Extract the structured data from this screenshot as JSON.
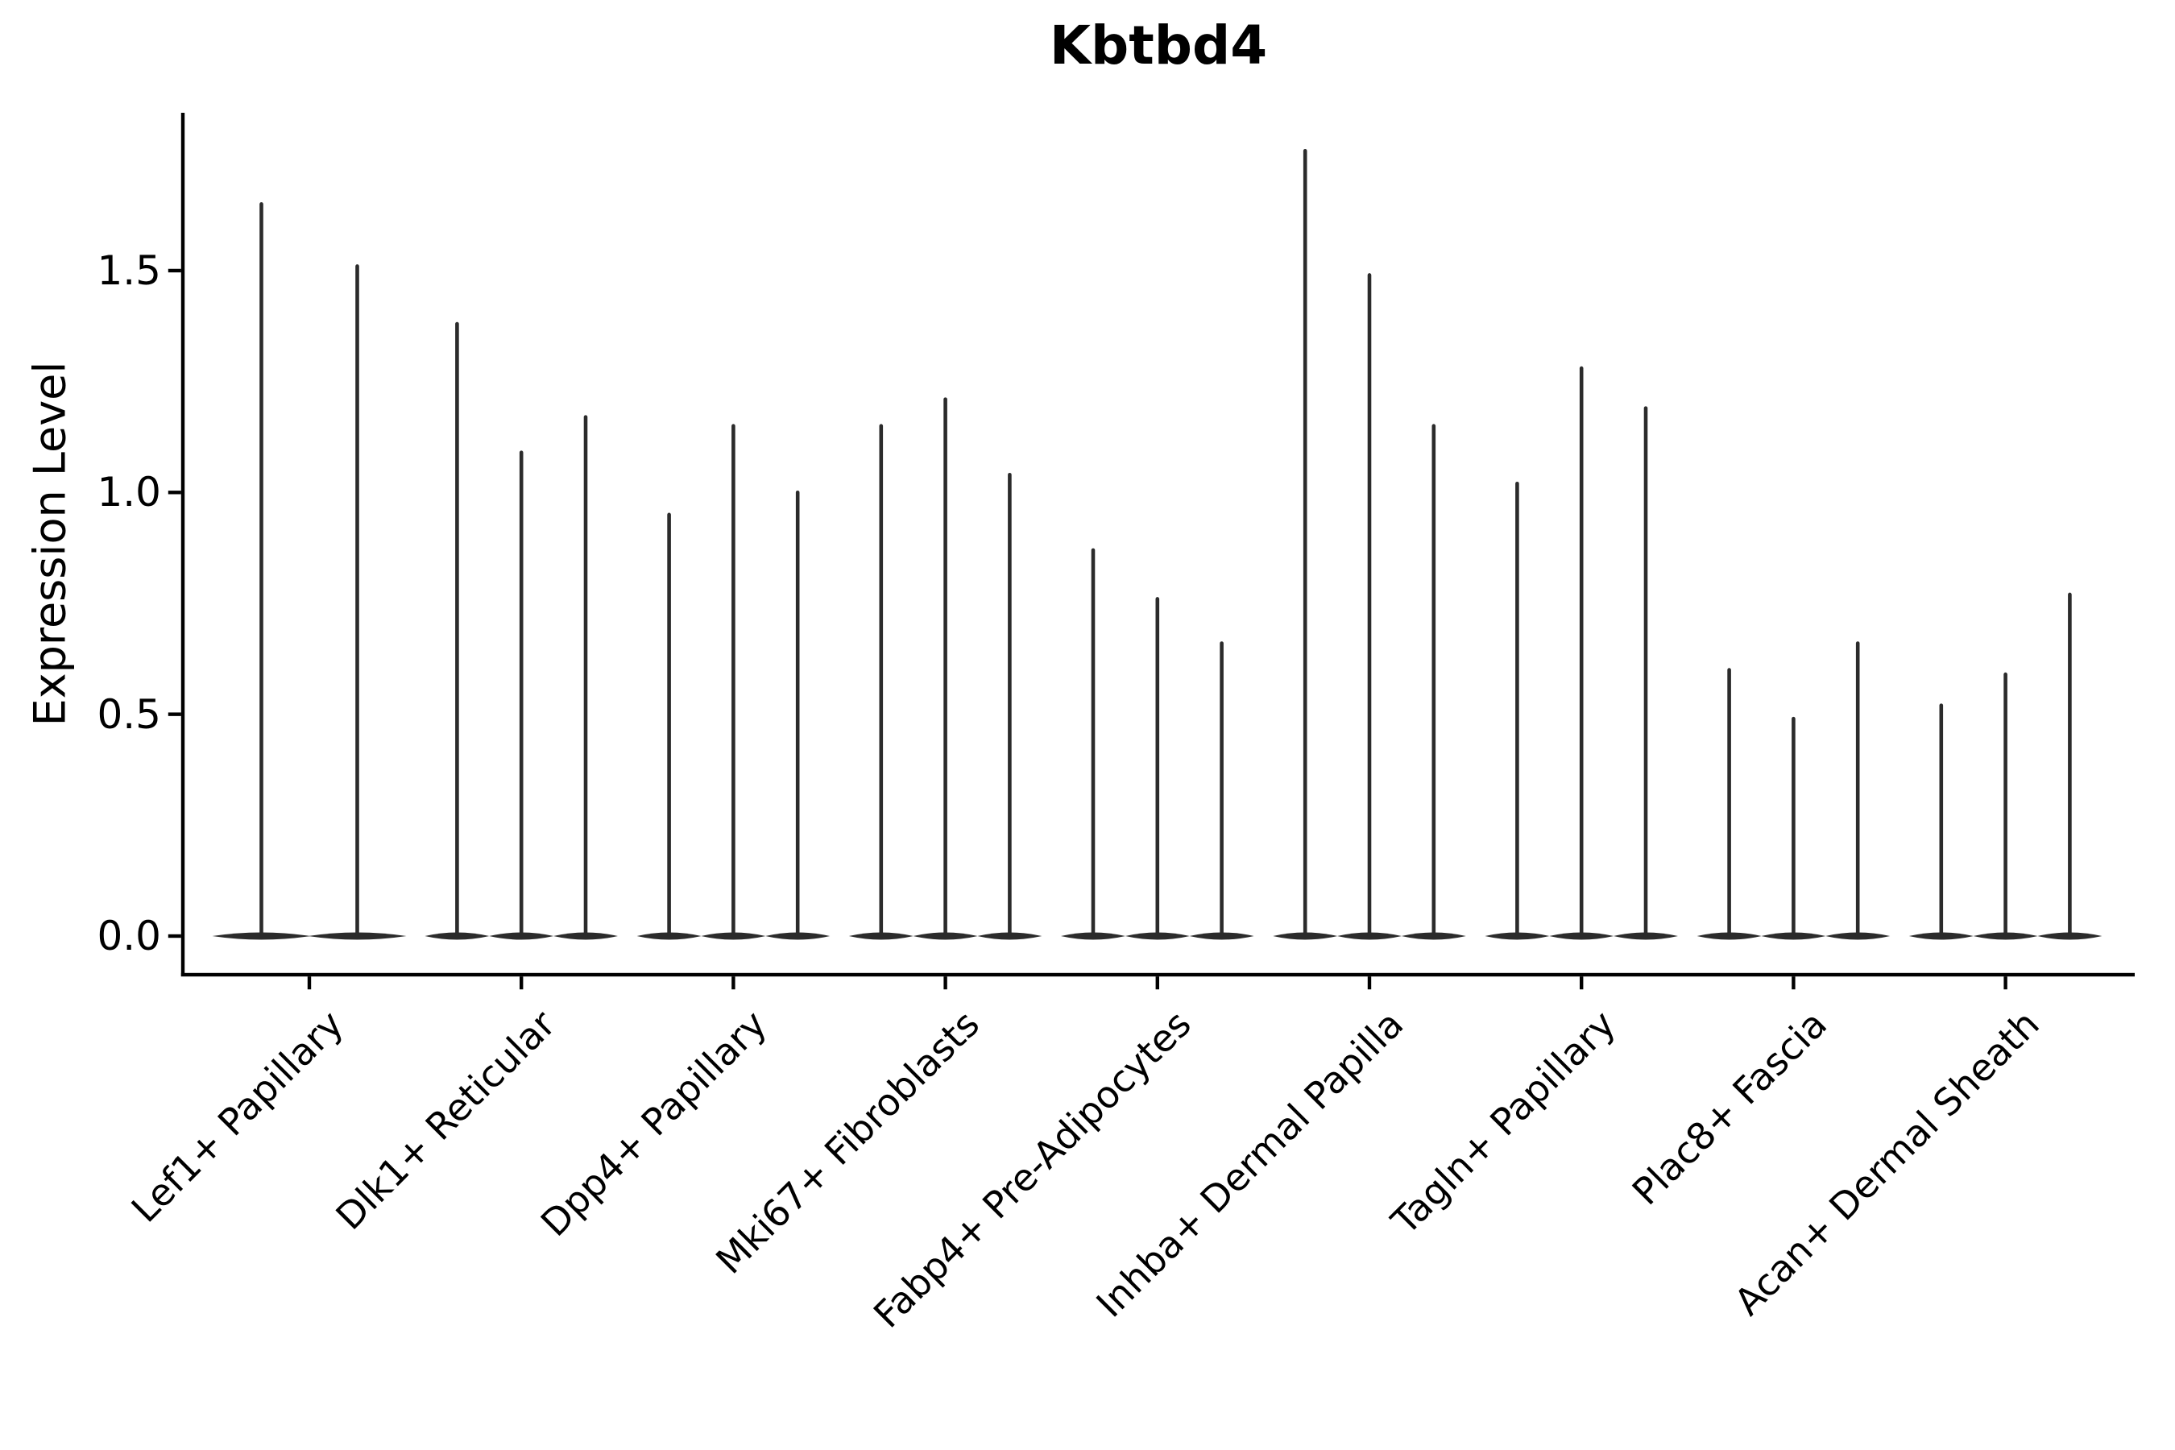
{
  "title": "Kbtbd4",
  "axes": {
    "ylabel": "Expression Level",
    "ytick_labels": [
      "0.0",
      "0.5",
      "1.0",
      "1.5"
    ]
  },
  "chart_data": {
    "type": "violin",
    "title": "Kbtbd4",
    "xlabel": "",
    "ylabel": "Expression Level",
    "yticks": [
      0.0,
      0.5,
      1.0,
      1.5
    ],
    "ylim": [
      -0.09,
      1.86
    ],
    "grid": false,
    "legend": "none",
    "categories": [
      "Lef1+ Papillary",
      "Dlk1+ Reticular",
      "Dpp4+ Papillary",
      "Mki67+ Fibroblasts",
      "Fabp4+ Pre-Adipocytes",
      "Inhba+ Dermal Papilla",
      "Tagln+ Papillary",
      "Plac8+ Fascia",
      "Acan+ Dermal Sheath"
    ],
    "groups": [
      {
        "category": "Lef1+ Papillary",
        "violin_maxima": [
          1.65,
          1.51
        ]
      },
      {
        "category": "Dlk1+ Reticular",
        "violin_maxima": [
          1.38,
          1.09,
          1.17
        ]
      },
      {
        "category": "Dpp4+ Papillary",
        "violin_maxima": [
          0.95,
          1.15,
          1.0
        ]
      },
      {
        "category": "Mki67+ Fibroblasts",
        "violin_maxima": [
          1.15,
          1.21,
          1.04
        ]
      },
      {
        "category": "Fabp4+ Pre-Adipocytes",
        "violin_maxima": [
          0.87,
          0.76,
          0.66
        ]
      },
      {
        "category": "Inhba+ Dermal Papilla",
        "violin_maxima": [
          1.77,
          1.49,
          1.15
        ]
      },
      {
        "category": "Tagln+ Papillary",
        "violin_maxima": [
          1.02,
          1.28,
          1.19
        ]
      },
      {
        "category": "Plac8+ Fascia",
        "violin_maxima": [
          0.6,
          0.49,
          0.66
        ]
      },
      {
        "category": "Acan+ Dermal Sheath",
        "violin_maxima": [
          0.52,
          0.59,
          0.77
        ]
      }
    ],
    "violin_shape_note": "Each violin is almost entirely mass at 0 expression: a flat lens on the baseline with a thin vertical tail reaching the listed maximum.",
    "colors": {
      "violin_stroke": "#2b2b2b",
      "axis": "#000000",
      "background": "#ffffff"
    }
  }
}
